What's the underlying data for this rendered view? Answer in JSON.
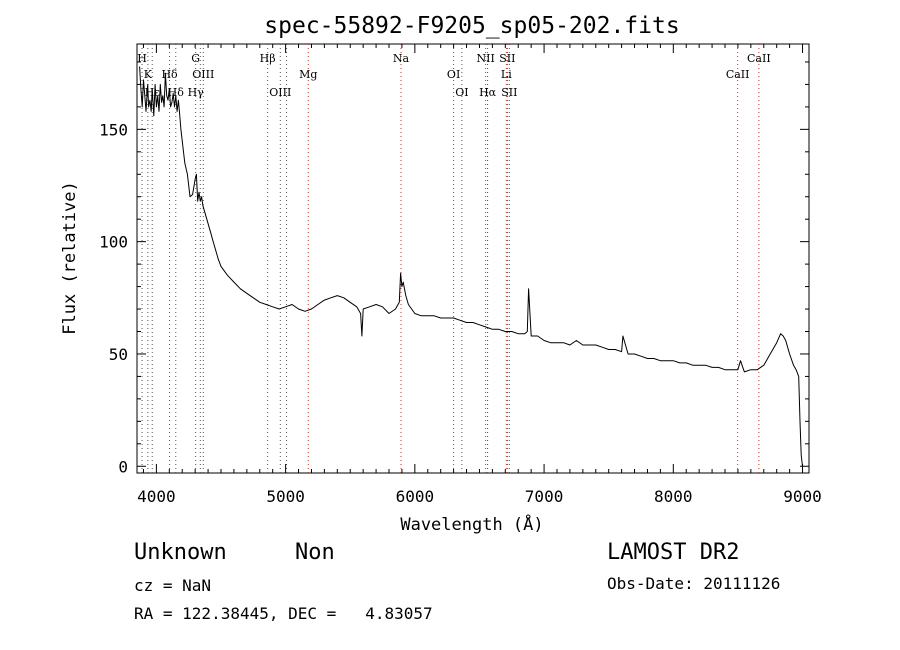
{
  "chart_data": {
    "type": "line",
    "title": "spec-55892-F9205_sp05-202.fits",
    "xlabel": "Wavelength (Å)",
    "ylabel": "Flux (relative)",
    "xlim": [
      3850,
      9050
    ],
    "ylim": [
      -3,
      188
    ],
    "xticks": [
      4000,
      5000,
      6000,
      7000,
      8000,
      9000
    ],
    "yticks": [
      0,
      50,
      100,
      150
    ],
    "grid": false,
    "line_color": "#000000",
    "series": [
      {
        "x": [
          3870,
          3880,
          3890,
          3900,
          3910,
          3920,
          3933,
          3940,
          3950,
          3960,
          3968,
          3980,
          3990,
          4000,
          4010,
          4020,
          4030,
          4040,
          4050,
          4060,
          4070,
          4080,
          4090,
          4100,
          4110,
          4120,
          4130,
          4140,
          4150,
          4160,
          4170,
          4180,
          4190,
          4200,
          4220,
          4240,
          4260,
          4280,
          4300,
          4310,
          4320,
          4330,
          4340,
          4350,
          4360,
          4380,
          4400,
          4420,
          4440,
          4460,
          4480,
          4500,
          4550,
          4600,
          4650,
          4700,
          4750,
          4800,
          4850,
          4900,
          4950,
          5000,
          5050,
          5100,
          5150,
          5200,
          5250,
          5300,
          5350,
          5400,
          5450,
          5500,
          5550,
          5580,
          5590,
          5600,
          5650,
          5700,
          5750,
          5800,
          5850,
          5880,
          5890,
          5900,
          5910,
          5930,
          5950,
          6000,
          6050,
          6100,
          6150,
          6200,
          6250,
          6300,
          6350,
          6400,
          6450,
          6500,
          6550,
          6600,
          6650,
          6700,
          6750,
          6800,
          6850,
          6870,
          6880,
          6900,
          6950,
          7000,
          7050,
          7100,
          7150,
          7200,
          7250,
          7300,
          7350,
          7400,
          7450,
          7500,
          7550,
          7600,
          7610,
          7650,
          7700,
          7750,
          7800,
          7850,
          7900,
          7950,
          8000,
          8050,
          8100,
          8150,
          8200,
          8250,
          8300,
          8350,
          8400,
          8450,
          8500,
          8520,
          8550,
          8600,
          8650,
          8700,
          8750,
          8800,
          8830,
          8850,
          8870,
          8900,
          8930,
          8950,
          8970,
          8980,
          8990,
          9000
        ],
        "y": [
          178,
          168,
          160,
          172,
          165,
          158,
          170,
          160,
          163,
          158,
          168,
          156,
          170,
          160,
          165,
          158,
          170,
          162,
          165,
          160,
          175,
          165,
          163,
          168,
          160,
          162,
          166,
          160,
          165,
          158,
          163,
          157,
          150,
          145,
          135,
          130,
          120,
          121,
          128,
          130,
          118,
          122,
          118,
          120,
          116,
          112,
          108,
          104,
          100,
          96,
          92,
          89,
          85,
          82,
          79,
          77,
          75,
          73,
          72,
          71,
          70,
          71,
          72,
          70,
          69,
          70,
          72,
          74,
          75,
          76,
          75,
          73,
          71,
          68,
          58,
          70,
          71,
          72,
          71,
          68,
          70,
          73,
          86,
          80,
          82,
          76,
          72,
          68,
          67,
          67,
          67,
          66,
          66,
          66,
          65,
          64,
          64,
          63,
          62,
          61,
          61,
          60,
          60,
          59,
          59,
          60,
          79,
          58,
          58,
          56,
          55,
          55,
          55,
          54,
          56,
          54,
          54,
          54,
          53,
          52,
          52,
          51,
          58,
          50,
          50,
          49,
          48,
          48,
          47,
          47,
          47,
          46,
          46,
          45,
          45,
          45,
          44,
          44,
          43,
          43,
          43,
          47,
          42,
          43,
          43,
          45,
          50,
          55,
          59,
          58,
          56,
          50,
          45,
          43,
          40,
          20,
          5,
          0
        ]
      }
    ],
    "line_labels": [
      {
        "x": 3889,
        "labels": [
          {
            "text": "H",
            "row": 0
          }
        ]
      },
      {
        "x": 3934,
        "labels": [
          {
            "text": "K",
            "row": 1
          }
        ]
      },
      {
        "x": 3968,
        "labels": [
          {
            "text": "Hε",
            "row": 2
          }
        ]
      },
      {
        "x": 4102,
        "labels": [
          {
            "text": "Hδ",
            "row": 1
          }
        ]
      },
      {
        "x": 4150,
        "labels": [
          {
            "text": "Hδ",
            "row": 2
          }
        ]
      },
      {
        "x": 4304,
        "labels": [
          {
            "text": "G",
            "row": 0
          },
          {
            "text": "Hγ",
            "row": 2
          }
        ]
      },
      {
        "x": 4363,
        "labels": [
          {
            "text": "OIII",
            "row": 1
          }
        ]
      },
      {
        "x": 4861,
        "labels": [
          {
            "text": "Hβ",
            "row": 0
          }
        ]
      },
      {
        "x": 4959,
        "labels": [
          {
            "text": "OIII",
            "row": 2
          }
        ]
      },
      {
        "x": 5175,
        "labels": [
          {
            "text": "Mg",
            "row": 1
          }
        ]
      },
      {
        "x": 5893,
        "labels": [
          {
            "text": "Na",
            "row": 0
          }
        ]
      },
      {
        "x": 6300,
        "labels": [
          {
            "text": "OI",
            "row": 1
          }
        ]
      },
      {
        "x": 6364,
        "labels": [
          {
            "text": "OI",
            "row": 2
          }
        ]
      },
      {
        "x": 6548,
        "labels": [
          {
            "text": "NII",
            "row": 0
          }
        ]
      },
      {
        "x": 6563,
        "labels": [
          {
            "text": "Hα",
            "row": 2
          }
        ]
      },
      {
        "x": 6708,
        "labels": [
          {
            "text": "Li",
            "row": 1
          }
        ]
      },
      {
        "x": 6716,
        "labels": [
          {
            "text": "SII",
            "row": 0
          }
        ]
      },
      {
        "x": 6731,
        "labels": [
          {
            "text": "SII",
            "row": 2
          }
        ]
      },
      {
        "x": 8498,
        "labels": [
          {
            "text": "CaII",
            "row": 1
          }
        ]
      },
      {
        "x": 8662,
        "labels": [
          {
            "text": "CaII",
            "row": 0
          }
        ]
      }
    ],
    "marker_lines": [
      {
        "x": 3889,
        "color": "#555555"
      },
      {
        "x": 3934,
        "color": "#555555"
      },
      {
        "x": 3968,
        "color": "#555555"
      },
      {
        "x": 4102,
        "color": "#555555"
      },
      {
        "x": 4150,
        "color": "#555555"
      },
      {
        "x": 4304,
        "color": "#555555"
      },
      {
        "x": 4340,
        "color": "#555555"
      },
      {
        "x": 4363,
        "color": "#555555"
      },
      {
        "x": 4861,
        "color": "#555555"
      },
      {
        "x": 4959,
        "color": "#555555"
      },
      {
        "x": 5007,
        "color": "#555555"
      },
      {
        "x": 5175,
        "color": "#c0392b"
      },
      {
        "x": 5893,
        "color": "#c0392b"
      },
      {
        "x": 6300,
        "color": "#555555"
      },
      {
        "x": 6364,
        "color": "#555555"
      },
      {
        "x": 6548,
        "color": "#555555"
      },
      {
        "x": 6563,
        "color": "#555555"
      },
      {
        "x": 6708,
        "color": "#c0392b"
      },
      {
        "x": 6716,
        "color": "#555555"
      },
      {
        "x": 6731,
        "color": "#555555"
      },
      {
        "x": 8498,
        "color": "#c0392b"
      },
      {
        "x": 8662,
        "color": "#c0392b"
      }
    ]
  },
  "info": {
    "class": "Unknown",
    "subclass": "Non",
    "cz": "cz = NaN",
    "radec": "RA = 122.38445, DEC =   4.83057",
    "survey": "LAMOST DR2",
    "obs_date": "Obs-Date: 20111126"
  }
}
